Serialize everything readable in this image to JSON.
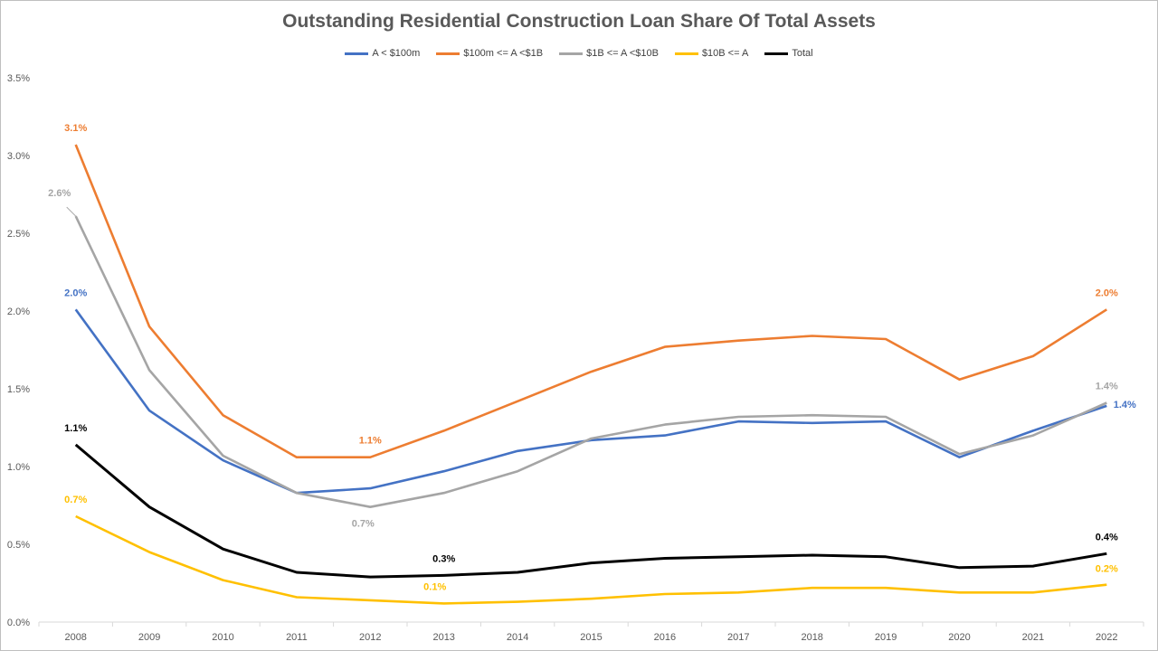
{
  "chart_data": {
    "type": "line",
    "title": "Outstanding Residential Construction Loan Share Of Total Assets",
    "xlabel": "",
    "ylabel": "",
    "categories": [
      "2008",
      "2009",
      "2010",
      "2011",
      "2012",
      "2013",
      "2014",
      "2015",
      "2016",
      "2017",
      "2018",
      "2019",
      "2020",
      "2021",
      "2022"
    ],
    "y_ticks": [
      "0.0%",
      "0.5%",
      "1.0%",
      "1.5%",
      "2.0%",
      "2.5%",
      "3.0%",
      "3.5%"
    ],
    "ylim": [
      0,
      3.5
    ],
    "grid": false,
    "legend_position": "top",
    "series": [
      {
        "name": "A < $100m",
        "color": "#4472c4",
        "values": [
          2.01,
          1.36,
          1.04,
          0.83,
          0.86,
          0.97,
          1.1,
          1.17,
          1.2,
          1.29,
          1.28,
          1.29,
          1.06,
          1.23,
          1.39
        ]
      },
      {
        "name": "$100m <= A <$1B",
        "color": "#ed7d31",
        "values": [
          3.07,
          1.9,
          1.33,
          1.06,
          1.06,
          1.23,
          1.42,
          1.61,
          1.77,
          1.81,
          1.84,
          1.82,
          1.56,
          1.71,
          2.01
        ]
      },
      {
        "name": "$1B <= A <$10B",
        "color": "#a5a5a5",
        "values": [
          2.61,
          1.62,
          1.07,
          0.83,
          0.74,
          0.83,
          0.97,
          1.18,
          1.27,
          1.32,
          1.33,
          1.32,
          1.08,
          1.2,
          1.41
        ]
      },
      {
        "name": "$10B <= A",
        "color": "#ffc000",
        "values": [
          0.68,
          0.45,
          0.27,
          0.16,
          0.14,
          0.12,
          0.13,
          0.15,
          0.18,
          0.19,
          0.22,
          0.22,
          0.19,
          0.19,
          0.24
        ]
      },
      {
        "name": "Total",
        "color": "#000000",
        "values": [
          1.14,
          0.74,
          0.47,
          0.32,
          0.29,
          0.3,
          0.32,
          0.38,
          0.41,
          0.42,
          0.43,
          0.42,
          0.35,
          0.36,
          0.44
        ]
      }
    ],
    "annotations": [
      {
        "series": 0,
        "index": 0,
        "text": "2.0%"
      },
      {
        "series": 0,
        "index": 14,
        "text": "1.4%"
      },
      {
        "series": 1,
        "index": 0,
        "text": "3.1%"
      },
      {
        "series": 1,
        "index": 4,
        "text": "1.1%"
      },
      {
        "series": 1,
        "index": 14,
        "text": "2.0%"
      },
      {
        "series": 2,
        "index": 0,
        "text": "2.6%"
      },
      {
        "series": 2,
        "index": 4,
        "text": "0.7%"
      },
      {
        "series": 2,
        "index": 14,
        "text": "1.4%"
      },
      {
        "series": 3,
        "index": 0,
        "text": "0.7%"
      },
      {
        "series": 3,
        "index": 5,
        "text": "0.1%"
      },
      {
        "series": 3,
        "index": 14,
        "text": "0.2%"
      },
      {
        "series": 4,
        "index": 0,
        "text": "1.1%"
      },
      {
        "series": 4,
        "index": 5,
        "text": "0.3%"
      },
      {
        "series": 4,
        "index": 14,
        "text": "0.4%"
      }
    ]
  }
}
